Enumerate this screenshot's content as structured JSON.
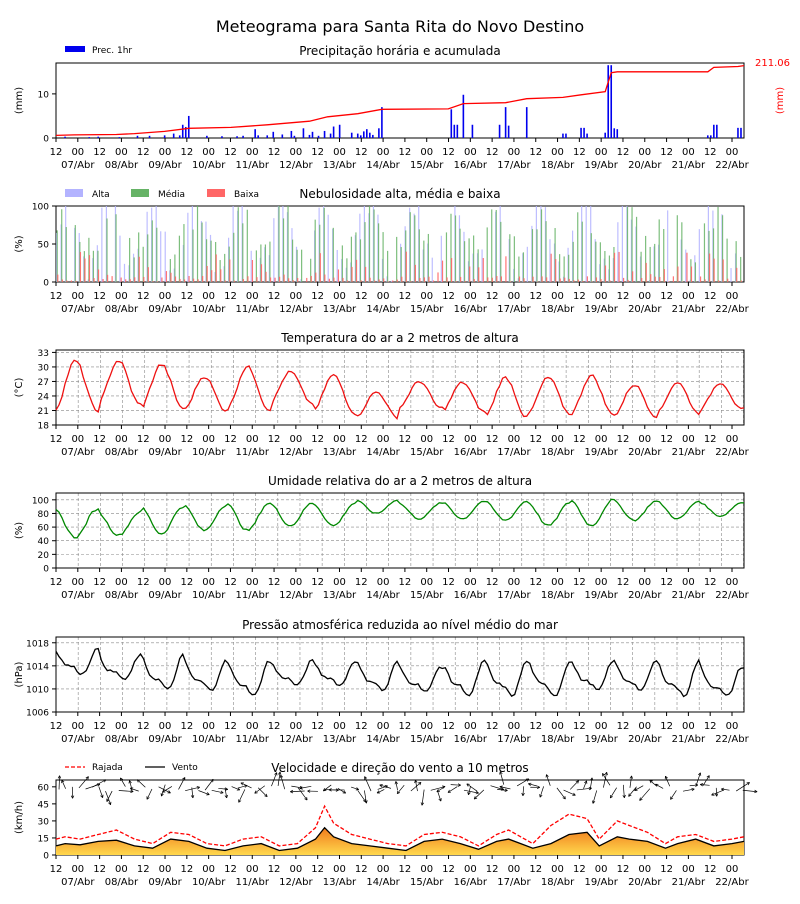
{
  "page": {
    "title": "Meteograma para Santa Rita do Novo Destino"
  },
  "time_axis": {
    "hour_labels": [
      "12",
      "00",
      "12",
      "00",
      "12",
      "00",
      "12",
      "00",
      "12",
      "00",
      "12",
      "00",
      "12",
      "00",
      "12",
      "00",
      "12",
      "00",
      "12",
      "00",
      "12",
      "00",
      "12",
      "00",
      "12",
      "00",
      "12",
      "00",
      "12",
      "00",
      "12",
      "00"
    ],
    "date_labels": [
      "07/Abr",
      "08/Abr",
      "09/Abr",
      "10/Abr",
      "11/Abr",
      "12/Abr",
      "13/Abr",
      "14/Abr",
      "15/Abr",
      "16/Abr",
      "17/Abr",
      "18/Abr",
      "19/Abr",
      "20/Abr",
      "21/Abr",
      "22/Abr"
    ]
  },
  "colors": {
    "precip_bar": "#0000ee",
    "accum_line": "#ff0000",
    "cloud_high": "#b3b3ff",
    "cloud_mid": "#66b366",
    "cloud_low": "#ff6666",
    "temperature": "#ee1111",
    "humidity": "#008800",
    "pressure": "#000000",
    "gust": "#ff0000",
    "wind": "#000000",
    "wind_fill_low": "#ffd84d",
    "wind_fill_high": "#f07b1c"
  },
  "chart_data": [
    {
      "id": "precip",
      "type": "bar",
      "title": "Precipitação horária e acumulada",
      "ylabel": "(mm)",
      "ylabel_right": "(mm)",
      "legend": [
        "Prec. 1hr"
      ],
      "ylim": [
        0,
        17
      ],
      "yticks": [
        "0",
        "10"
      ],
      "accum_label": "211.06",
      "bars": [
        [
          3,
          0.3
        ],
        [
          11,
          0.2
        ],
        [
          14,
          0.3
        ],
        [
          21,
          0.2
        ],
        [
          27,
          0.5
        ],
        [
          31,
          0.5
        ],
        [
          36,
          0.6
        ],
        [
          39,
          1
        ],
        [
          41,
          0.6
        ],
        [
          42,
          3
        ],
        [
          43,
          2.5
        ],
        [
          44,
          5
        ],
        [
          50,
          0.5
        ],
        [
          55,
          0.4
        ],
        [
          60,
          0.4
        ],
        [
          62,
          0.5
        ],
        [
          66,
          2
        ],
        [
          67,
          0.6
        ],
        [
          70,
          0.6
        ],
        [
          72,
          1.4
        ],
        [
          75,
          0.8
        ],
        [
          78,
          1.6
        ],
        [
          79,
          0.5
        ],
        [
          82,
          2.2
        ],
        [
          84,
          0.7
        ],
        [
          85,
          1.4
        ],
        [
          87,
          0.5
        ],
        [
          89,
          1.6
        ],
        [
          91,
          1
        ],
        [
          92,
          2.6
        ],
        [
          94,
          3
        ],
        [
          98,
          1.2
        ],
        [
          100,
          1
        ],
        [
          101,
          0.6
        ],
        [
          102,
          1.5
        ],
        [
          103,
          2
        ],
        [
          104,
          1.2
        ],
        [
          105,
          0.7
        ],
        [
          107,
          2.2
        ],
        [
          108,
          7
        ],
        [
          131,
          6.5
        ],
        [
          132,
          3
        ],
        [
          133,
          3
        ],
        [
          135,
          9.8
        ],
        [
          138,
          3
        ],
        [
          147,
          3
        ],
        [
          149,
          7
        ],
        [
          150,
          2.8
        ],
        [
          156,
          7
        ],
        [
          168,
          1
        ],
        [
          169,
          1
        ],
        [
          174,
          2.3
        ],
        [
          175,
          2.3
        ],
        [
          176,
          1
        ],
        [
          182,
          1.2
        ],
        [
          183,
          16.5
        ],
        [
          184,
          16.5
        ],
        [
          185,
          2.2
        ],
        [
          186,
          2
        ],
        [
          216,
          0.6
        ],
        [
          217,
          0.6
        ],
        [
          218,
          3
        ],
        [
          219,
          3
        ],
        [
          226,
          2.3
        ],
        [
          227,
          2.3
        ]
      ],
      "accum_series": [
        [
          0,
          0.6
        ],
        [
          6,
          0.7
        ],
        [
          20,
          0.8
        ],
        [
          26,
          1
        ],
        [
          36,
          1.5
        ],
        [
          44,
          2.2
        ],
        [
          58,
          2.4
        ],
        [
          70,
          3
        ],
        [
          84,
          3.8
        ],
        [
          90,
          4.8
        ],
        [
          100,
          5.5
        ],
        [
          108,
          6.5
        ],
        [
          130,
          6.6
        ],
        [
          135,
          7.8
        ],
        [
          149,
          8
        ],
        [
          156,
          8.9
        ],
        [
          168,
          9.2
        ],
        [
          174,
          9.8
        ],
        [
          182,
          10.5
        ],
        [
          184,
          14.8
        ],
        [
          186,
          15
        ],
        [
          216,
          15
        ],
        [
          218,
          16
        ],
        [
          226,
          16.2
        ],
        [
          228,
          16.4
        ]
      ]
    },
    {
      "id": "cloud",
      "type": "bar",
      "title": "Nebulosidade alta, média e baixa",
      "ylabel": "(%)",
      "ylim": [
        0,
        100
      ],
      "yticks": [
        "0",
        "50",
        "100"
      ],
      "legend": [
        "Alta",
        "Média",
        "Baixa"
      ]
    },
    {
      "id": "temp",
      "type": "line",
      "title": "Temperatura do ar a 2 metros de altura",
      "ylabel": "(°C)",
      "ylim": [
        18,
        33.5
      ],
      "yticks": [
        "18",
        "21",
        "24",
        "27",
        "30",
        "33"
      ],
      "daily_min": [
        21,
        22.2,
        21.5,
        21,
        21.2,
        22.5,
        20.5,
        19.5,
        21.5,
        20.8,
        19.5,
        20.3,
        20.2,
        19.8,
        20.4,
        21.2
      ],
      "daily_max": [
        31.2,
        31.3,
        30.5,
        28,
        30,
        29,
        28.3,
        24.8,
        27,
        26.8,
        27.8,
        27.8,
        28.2,
        26.3,
        26.8,
        26.7
      ]
    },
    {
      "id": "humidity",
      "type": "line",
      "title": "Umidade relativa do ar a 2 metros de altura",
      "ylabel": "(%)",
      "ylim": [
        0,
        110
      ],
      "yticks": [
        "0",
        "20",
        "40",
        "60",
        "80",
        "100"
      ],
      "daily_min": [
        45,
        48,
        50,
        55,
        55,
        62,
        62,
        80,
        72,
        72,
        70,
        62,
        62,
        70,
        72,
        76
      ],
      "daily_max": [
        86,
        82,
        90,
        92,
        95,
        95,
        95,
        100,
        95,
        98,
        98,
        96,
        100,
        98,
        98,
        96
      ]
    },
    {
      "id": "pressure",
      "type": "line",
      "title": "Pressão atmosférica reduzida ao nível médio do mar",
      "ylabel": "(hPa)",
      "ylim": [
        1006,
        1019
      ],
      "yticks": [
        "1006",
        "1010",
        "1014",
        "1018"
      ],
      "daily_min": [
        1012,
        1011,
        1009,
        1009,
        1008,
        1010,
        1010,
        1009,
        1009,
        1008,
        1008,
        1008,
        1009,
        1009,
        1008,
        1008
      ],
      "daily_max": [
        1017,
        1016,
        1016,
        1015,
        1015,
        1015,
        1015,
        1015,
        1014,
        1015,
        1015,
        1015,
        1015,
        1015,
        1015,
        1014
      ]
    },
    {
      "id": "wind",
      "type": "area",
      "title": "Velocidade e direção do vento a 10 metros",
      "ylabel": "(km/h)",
      "ylim": [
        0,
        66
      ],
      "yticks": [
        "0",
        "15",
        "30",
        "45",
        "60"
      ],
      "legend": [
        "Rajada",
        "Vento"
      ],
      "wind_series": [
        [
          0,
          8
        ],
        [
          3,
          10
        ],
        [
          8,
          9
        ],
        [
          14,
          12
        ],
        [
          20,
          13
        ],
        [
          26,
          8
        ],
        [
          32,
          6
        ],
        [
          38,
          14
        ],
        [
          44,
          12
        ],
        [
          50,
          6
        ],
        [
          56,
          4
        ],
        [
          62,
          8
        ],
        [
          68,
          10
        ],
        [
          74,
          4
        ],
        [
          80,
          6
        ],
        [
          86,
          14
        ],
        [
          89,
          24
        ],
        [
          92,
          16
        ],
        [
          98,
          10
        ],
        [
          104,
          8
        ],
        [
          110,
          6
        ],
        [
          116,
          4
        ],
        [
          122,
          12
        ],
        [
          128,
          14
        ],
        [
          134,
          10
        ],
        [
          140,
          5
        ],
        [
          146,
          12
        ],
        [
          150,
          14
        ],
        [
          154,
          10
        ],
        [
          158,
          6
        ],
        [
          164,
          10
        ],
        [
          170,
          18
        ],
        [
          176,
          20
        ],
        [
          180,
          8
        ],
        [
          186,
          16
        ],
        [
          190,
          14
        ],
        [
          196,
          12
        ],
        [
          202,
          6
        ],
        [
          206,
          10
        ],
        [
          212,
          14
        ],
        [
          218,
          8
        ],
        [
          224,
          10
        ],
        [
          228,
          12
        ]
      ],
      "gust_series": [
        [
          0,
          14
        ],
        [
          3,
          16
        ],
        [
          8,
          14
        ],
        [
          14,
          18
        ],
        [
          20,
          22
        ],
        [
          26,
          14
        ],
        [
          32,
          10
        ],
        [
          38,
          20
        ],
        [
          44,
          18
        ],
        [
          50,
          10
        ],
        [
          56,
          8
        ],
        [
          62,
          14
        ],
        [
          68,
          16
        ],
        [
          74,
          8
        ],
        [
          80,
          10
        ],
        [
          86,
          24
        ],
        [
          89,
          43
        ],
        [
          92,
          28
        ],
        [
          98,
          18
        ],
        [
          104,
          14
        ],
        [
          110,
          10
        ],
        [
          116,
          8
        ],
        [
          122,
          18
        ],
        [
          128,
          20
        ],
        [
          134,
          16
        ],
        [
          140,
          8
        ],
        [
          146,
          18
        ],
        [
          150,
          22
        ],
        [
          154,
          16
        ],
        [
          158,
          10
        ],
        [
          164,
          26
        ],
        [
          170,
          36
        ],
        [
          176,
          32
        ],
        [
          180,
          14
        ],
        [
          186,
          30
        ],
        [
          190,
          26
        ],
        [
          196,
          20
        ],
        [
          202,
          10
        ],
        [
          206,
          16
        ],
        [
          212,
          18
        ],
        [
          218,
          12
        ],
        [
          224,
          14
        ],
        [
          228,
          16
        ]
      ]
    }
  ]
}
